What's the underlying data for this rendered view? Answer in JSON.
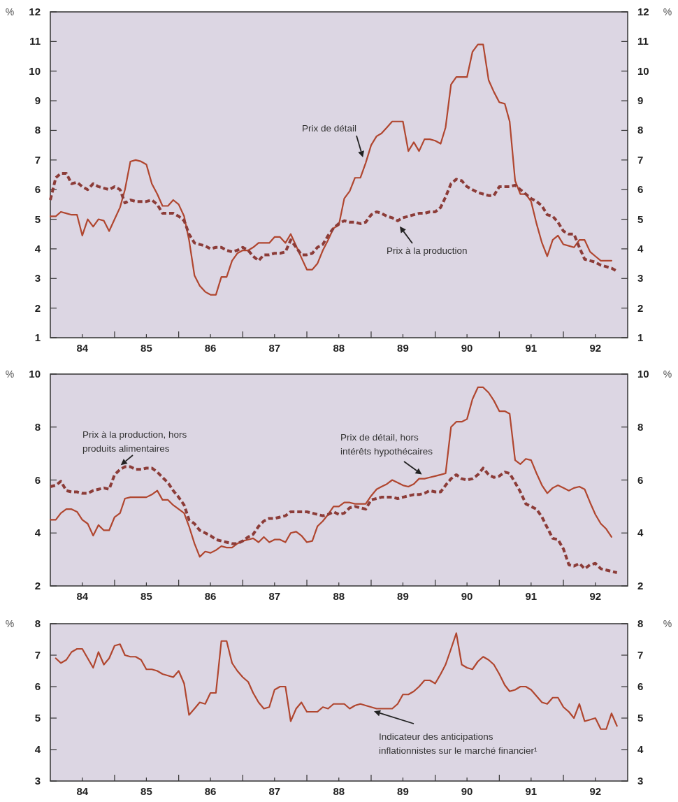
{
  "chart_data": [
    {
      "type": "line",
      "ylabel": "%",
      "y2label": "%",
      "x": [
        "1984-01",
        "1984-02",
        "1984-03",
        "1984-04",
        "1984-05",
        "1984-06",
        "1984-07",
        "1984-08",
        "1984-09",
        "1984-10",
        "1984-11",
        "1984-12",
        "1985-01",
        "1985-02",
        "1985-03",
        "1985-04",
        "1985-05",
        "1985-06",
        "1985-07",
        "1985-08",
        "1985-09",
        "1985-10",
        "1985-11",
        "1985-12",
        "1986-01",
        "1986-02",
        "1986-03",
        "1986-04",
        "1986-05",
        "1986-06",
        "1986-07",
        "1986-08",
        "1986-09",
        "1986-10",
        "1986-11",
        "1986-12",
        "1987-01",
        "1987-02",
        "1987-03",
        "1987-04",
        "1987-05",
        "1987-06",
        "1987-07",
        "1987-08",
        "1987-09",
        "1987-10",
        "1987-11",
        "1987-12",
        "1988-01",
        "1988-02",
        "1988-03",
        "1988-04",
        "1988-05",
        "1988-06",
        "1988-07",
        "1988-08",
        "1988-09",
        "1988-10",
        "1988-11",
        "1988-12",
        "1989-01",
        "1989-02",
        "1989-03",
        "1989-04",
        "1989-05",
        "1989-06",
        "1989-07",
        "1989-08",
        "1989-09",
        "1989-10",
        "1989-11",
        "1989-12",
        "1990-01",
        "1990-02",
        "1990-03",
        "1990-04",
        "1990-05",
        "1990-06",
        "1990-07",
        "1990-08",
        "1990-09",
        "1990-10",
        "1990-11",
        "1990-12",
        "1991-01",
        "1991-02",
        "1991-03",
        "1991-04",
        "1991-05",
        "1991-06",
        "1991-07",
        "1991-08",
        "1991-09",
        "1991-10",
        "1991-11",
        "1991-12",
        "1992-01",
        "1992-02",
        "1992-03",
        "1992-04",
        "1992-05",
        "1992-06",
        "1992-07",
        "1992-08",
        "1992-09",
        "1992-10",
        "1992-11"
      ],
      "xlim": [
        "1984-01",
        "1993-01"
      ],
      "xticks": [
        {
          "value": "1984-07",
          "label": "84"
        },
        {
          "value": "1985-01",
          "label": null
        },
        {
          "value": "1985-07",
          "label": "85"
        },
        {
          "value": "1986-01",
          "label": null
        },
        {
          "value": "1986-07",
          "label": "86"
        },
        {
          "value": "1987-01",
          "label": null
        },
        {
          "value": "1987-07",
          "label": "87"
        },
        {
          "value": "1988-01",
          "label": null
        },
        {
          "value": "1988-07",
          "label": "88"
        },
        {
          "value": "1989-01",
          "label": null
        },
        {
          "value": "1989-07",
          "label": "89"
        },
        {
          "value": "1990-01",
          "label": null
        },
        {
          "value": "1990-07",
          "label": "90"
        },
        {
          "value": "1991-01",
          "label": null
        },
        {
          "value": "1991-07",
          "label": "91"
        },
        {
          "value": "1992-01",
          "label": null
        },
        {
          "value": "1992-07",
          "label": "92"
        }
      ],
      "ylim": [
        1,
        12
      ],
      "yticks": [
        1,
        2,
        3,
        4,
        5,
        6,
        7,
        8,
        9,
        10,
        11,
        12
      ],
      "y2lim": [
        1,
        12
      ],
      "y2ticks": [
        1,
        2,
        3,
        4,
        5,
        6,
        7,
        8,
        9,
        10,
        11,
        12
      ],
      "series": [
        {
          "name": "Prix de détail",
          "color": "#b0462f",
          "line_style": "solid",
          "values": [
            5.1,
            5.1,
            5.25,
            5.2,
            5.15,
            5.15,
            4.45,
            5.0,
            4.75,
            5.0,
            4.95,
            4.6,
            5.0,
            5.4,
            6.0,
            6.95,
            7.0,
            6.95,
            6.85,
            6.2,
            5.85,
            5.45,
            5.45,
            5.65,
            5.5,
            5.1,
            4.3,
            3.1,
            2.75,
            2.55,
            2.45,
            2.45,
            3.05,
            3.05,
            3.6,
            3.85,
            3.95,
            3.95,
            4.05,
            4.2,
            4.2,
            4.2,
            4.4,
            4.4,
            4.2,
            4.5,
            4.1,
            3.7,
            3.3,
            3.3,
            3.5,
            3.95,
            4.3,
            4.7,
            4.8,
            5.7,
            5.95,
            6.4,
            6.4,
            6.9,
            7.5,
            7.8,
            7.9,
            8.1,
            8.3,
            8.3,
            8.3,
            7.3,
            7.6,
            7.3,
            7.7,
            7.7,
            7.65,
            7.55,
            8.1,
            9.55,
            9.8,
            9.8,
            9.8,
            10.65,
            10.9,
            10.9,
            9.7,
            9.3,
            8.95,
            8.9,
            8.3,
            6.3,
            5.85,
            5.85,
            5.6,
            4.85,
            4.2,
            3.75,
            4.3,
            4.45,
            4.15,
            4.1,
            4.05,
            4.3,
            4.3,
            3.9,
            3.75,
            3.6,
            3.6,
            3.6,
            null
          ]
        },
        {
          "name": "Prix à la production",
          "color": "#8c3c38",
          "line_style": "dashed",
          "values": [
            5.65,
            6.4,
            6.55,
            6.55,
            6.2,
            6.25,
            6.1,
            6.0,
            6.2,
            6.1,
            6.05,
            6.0,
            6.1,
            6.0,
            5.55,
            5.65,
            5.6,
            5.6,
            5.6,
            5.65,
            5.5,
            5.2,
            5.2,
            5.2,
            5.1,
            4.95,
            4.5,
            4.2,
            4.15,
            4.1,
            4.0,
            4.05,
            4.05,
            3.95,
            3.9,
            3.95,
            4.05,
            3.95,
            3.75,
            3.6,
            3.8,
            3.8,
            3.85,
            3.85,
            3.9,
            4.3,
            4.05,
            3.8,
            3.8,
            3.85,
            4.05,
            4.15,
            4.45,
            4.7,
            4.85,
            4.95,
            4.9,
            4.9,
            4.85,
            4.9,
            5.15,
            5.25,
            5.2,
            5.1,
            5.05,
            4.95,
            5.05,
            5.1,
            5.15,
            5.2,
            5.2,
            5.25,
            5.25,
            5.4,
            5.75,
            6.2,
            6.35,
            6.3,
            6.1,
            6.0,
            5.9,
            5.85,
            5.8,
            5.8,
            6.1,
            6.1,
            6.1,
            6.15,
            6.0,
            5.85,
            5.7,
            5.6,
            5.45,
            5.15,
            5.1,
            4.9,
            4.6,
            4.5,
            4.5,
            4.05,
            3.65,
            3.6,
            3.55,
            3.45,
            3.4,
            3.35,
            3.25
          ]
        }
      ]
    },
    {
      "type": "line",
      "ylabel": "%",
      "y2label": "%",
      "x": [
        "1984-01",
        "1984-02",
        "1984-03",
        "1984-04",
        "1984-05",
        "1984-06",
        "1984-07",
        "1984-08",
        "1984-09",
        "1984-10",
        "1984-11",
        "1984-12",
        "1985-01",
        "1985-02",
        "1985-03",
        "1985-04",
        "1985-05",
        "1985-06",
        "1985-07",
        "1985-08",
        "1985-09",
        "1985-10",
        "1985-11",
        "1985-12",
        "1986-01",
        "1986-02",
        "1986-03",
        "1986-04",
        "1986-05",
        "1986-06",
        "1986-07",
        "1986-08",
        "1986-09",
        "1986-10",
        "1986-11",
        "1986-12",
        "1987-01",
        "1987-02",
        "1987-03",
        "1987-04",
        "1987-05",
        "1987-06",
        "1987-07",
        "1987-08",
        "1987-09",
        "1987-10",
        "1987-11",
        "1987-12",
        "1988-01",
        "1988-02",
        "1988-03",
        "1988-04",
        "1988-05",
        "1988-06",
        "1988-07",
        "1988-08",
        "1988-09",
        "1988-10",
        "1988-11",
        "1988-12",
        "1989-01",
        "1989-02",
        "1989-03",
        "1989-04",
        "1989-05",
        "1989-06",
        "1989-07",
        "1989-08",
        "1989-09",
        "1989-10",
        "1989-11",
        "1989-12",
        "1990-01",
        "1990-02",
        "1990-03",
        "1990-04",
        "1990-05",
        "1990-06",
        "1990-07",
        "1990-08",
        "1990-09",
        "1990-10",
        "1990-11",
        "1990-12",
        "1991-01",
        "1991-02",
        "1991-03",
        "1991-04",
        "1991-05",
        "1991-06",
        "1991-07",
        "1991-08",
        "1991-09",
        "1991-10",
        "1991-11",
        "1991-12",
        "1992-01",
        "1992-02",
        "1992-03",
        "1992-04",
        "1992-05",
        "1992-06",
        "1992-07",
        "1992-08",
        "1992-09",
        "1992-10",
        "1992-11"
      ],
      "xlim": [
        "1984-01",
        "1993-01"
      ],
      "xticks": [
        {
          "value": "1984-07",
          "label": "84"
        },
        {
          "value": "1985-01",
          "label": null
        },
        {
          "value": "1985-07",
          "label": "85"
        },
        {
          "value": "1986-01",
          "label": null
        },
        {
          "value": "1986-07",
          "label": "86"
        },
        {
          "value": "1987-01",
          "label": null
        },
        {
          "value": "1987-07",
          "label": "87"
        },
        {
          "value": "1988-01",
          "label": null
        },
        {
          "value": "1988-07",
          "label": "88"
        },
        {
          "value": "1989-01",
          "label": null
        },
        {
          "value": "1989-07",
          "label": "89"
        },
        {
          "value": "1990-01",
          "label": null
        },
        {
          "value": "1990-07",
          "label": "90"
        },
        {
          "value": "1991-01",
          "label": null
        },
        {
          "value": "1991-07",
          "label": "91"
        },
        {
          "value": "1992-01",
          "label": null
        },
        {
          "value": "1992-07",
          "label": "92"
        }
      ],
      "ylim": [
        2,
        10
      ],
      "yticks": [
        2,
        4,
        6,
        8,
        10
      ],
      "y2lim": [
        2,
        10
      ],
      "y2ticks": [
        2,
        4,
        6,
        8,
        10
      ],
      "series": [
        {
          "name": "Prix de détail, hors intérêts hypothécaires",
          "color": "#b0462f",
          "line_style": "solid",
          "values": [
            4.5,
            4.5,
            4.75,
            4.9,
            4.9,
            4.8,
            4.5,
            4.35,
            3.9,
            4.3,
            4.1,
            4.1,
            4.6,
            4.75,
            5.3,
            5.35,
            5.35,
            5.35,
            5.35,
            5.45,
            5.6,
            5.25,
            5.25,
            5.05,
            4.9,
            4.75,
            4.25,
            3.6,
            3.1,
            3.3,
            3.25,
            3.35,
            3.5,
            3.45,
            3.45,
            3.6,
            3.7,
            3.75,
            3.8,
            3.65,
            3.85,
            3.65,
            3.75,
            3.75,
            3.65,
            4.0,
            4.05,
            3.9,
            3.65,
            3.7,
            4.25,
            4.45,
            4.7,
            5.0,
            5.0,
            5.15,
            5.15,
            5.1,
            5.1,
            5.1,
            5.4,
            5.65,
            5.75,
            5.85,
            6.0,
            5.9,
            5.8,
            5.75,
            5.85,
            6.05,
            6.05,
            6.1,
            6.15,
            6.2,
            6.25,
            8.0,
            8.2,
            8.2,
            8.3,
            9.05,
            9.5,
            9.5,
            9.3,
            9.0,
            8.6,
            8.6,
            8.5,
            6.75,
            6.6,
            6.8,
            6.75,
            6.25,
            5.8,
            5.5,
            5.7,
            5.8,
            5.7,
            5.6,
            5.7,
            5.75,
            5.65,
            5.15,
            4.7,
            4.35,
            4.15,
            3.85,
            null
          ]
        },
        {
          "name": "Prix à la production, hors produits alimentaires",
          "color": "#8c3c38",
          "line_style": "dashed",
          "values": [
            5.75,
            5.8,
            5.95,
            5.6,
            5.55,
            5.55,
            5.5,
            5.5,
            5.6,
            5.65,
            5.7,
            5.65,
            6.2,
            6.4,
            6.5,
            6.5,
            6.4,
            6.4,
            6.45,
            6.45,
            6.3,
            6.1,
            5.9,
            5.6,
            5.35,
            5.05,
            4.5,
            4.35,
            4.1,
            4.0,
            3.9,
            3.75,
            3.7,
            3.65,
            3.6,
            3.6,
            3.7,
            3.85,
            3.95,
            4.25,
            4.45,
            4.55,
            4.55,
            4.6,
            4.65,
            4.8,
            4.8,
            4.8,
            4.8,
            4.75,
            4.7,
            4.65,
            4.7,
            4.8,
            4.7,
            4.75,
            4.95,
            5.0,
            4.95,
            4.9,
            5.25,
            5.3,
            5.35,
            5.35,
            5.35,
            5.3,
            5.35,
            5.4,
            5.45,
            5.45,
            5.5,
            5.6,
            5.55,
            5.55,
            5.8,
            6.05,
            6.2,
            6.05,
            6.0,
            6.05,
            6.2,
            6.45,
            6.2,
            6.1,
            6.15,
            6.3,
            6.25,
            5.9,
            5.55,
            5.1,
            5.0,
            4.9,
            4.6,
            4.2,
            3.8,
            3.75,
            3.4,
            2.8,
            2.75,
            2.85,
            2.65,
            2.8,
            2.85,
            2.65,
            2.6,
            2.55,
            2.5
          ]
        }
      ]
    },
    {
      "type": "line",
      "ylabel": "%",
      "y2label": "%",
      "x": [
        "1984-02",
        "1984-03",
        "1984-04",
        "1984-05",
        "1984-06",
        "1984-07",
        "1984-08",
        "1984-09",
        "1984-10",
        "1984-11",
        "1984-12",
        "1985-01",
        "1985-02",
        "1985-03",
        "1985-04",
        "1985-05",
        "1985-06",
        "1985-07",
        "1985-08",
        "1985-09",
        "1985-10",
        "1985-11",
        "1985-12",
        "1986-01",
        "1986-02",
        "1986-03",
        "1986-04",
        "1986-05",
        "1986-06",
        "1986-07",
        "1986-08",
        "1986-09",
        "1986-10",
        "1986-11",
        "1986-12",
        "1987-01",
        "1987-02",
        "1987-03",
        "1987-04",
        "1987-05",
        "1987-06",
        "1987-07",
        "1987-08",
        "1987-09",
        "1987-10",
        "1987-11",
        "1987-12",
        "1988-01",
        "1988-02",
        "1988-03",
        "1988-04",
        "1988-05",
        "1988-06",
        "1988-07",
        "1988-08",
        "1988-09",
        "1988-10",
        "1988-11",
        "1988-12",
        "1989-01",
        "1989-02",
        "1989-03",
        "1989-04",
        "1989-05",
        "1989-06",
        "1989-07",
        "1989-08",
        "1989-09",
        "1989-10",
        "1989-11",
        "1989-12",
        "1990-01",
        "1990-02",
        "1990-03",
        "1990-04",
        "1990-05",
        "1990-06",
        "1990-07",
        "1990-08",
        "1990-09",
        "1990-10",
        "1990-11",
        "1990-12",
        "1991-01",
        "1991-02",
        "1991-03",
        "1991-04",
        "1991-05",
        "1991-06",
        "1991-07",
        "1991-08",
        "1991-09",
        "1991-10",
        "1991-11",
        "1991-12",
        "1992-01",
        "1992-02",
        "1992-03",
        "1992-04",
        "1992-05",
        "1992-06",
        "1992-07",
        "1992-08",
        "1992-09",
        "1992-10",
        "1992-11"
      ],
      "xlim": [
        "1984-01",
        "1993-01"
      ],
      "xticks": [
        {
          "value": "1984-07",
          "label": "84"
        },
        {
          "value": "1985-01",
          "label": null
        },
        {
          "value": "1985-07",
          "label": "85"
        },
        {
          "value": "1986-01",
          "label": null
        },
        {
          "value": "1986-07",
          "label": "86"
        },
        {
          "value": "1987-01",
          "label": null
        },
        {
          "value": "1987-07",
          "label": "87"
        },
        {
          "value": "1988-01",
          "label": null
        },
        {
          "value": "1988-07",
          "label": "88"
        },
        {
          "value": "1989-01",
          "label": null
        },
        {
          "value": "1989-07",
          "label": "89"
        },
        {
          "value": "1990-01",
          "label": null
        },
        {
          "value": "1990-07",
          "label": "90"
        },
        {
          "value": "1991-01",
          "label": null
        },
        {
          "value": "1991-07",
          "label": "91"
        },
        {
          "value": "1992-01",
          "label": null
        },
        {
          "value": "1992-07",
          "label": "92"
        }
      ],
      "ylim": [
        3,
        8
      ],
      "yticks": [
        3,
        4,
        5,
        6,
        7,
        8
      ],
      "y2lim": [
        3,
        8
      ],
      "y2ticks": [
        3,
        4,
        5,
        6,
        7,
        8
      ],
      "series": [
        {
          "name": "Indicateur des anticipations inflationnistes sur le marché financier¹",
          "color": "#b0462f",
          "line_style": "solid",
          "values": [
            6.9,
            6.75,
            6.85,
            7.1,
            7.2,
            7.2,
            6.9,
            6.6,
            7.1,
            6.7,
            6.9,
            7.3,
            7.35,
            7.0,
            6.95,
            6.95,
            6.85,
            6.55,
            6.55,
            6.5,
            6.4,
            6.35,
            6.3,
            6.5,
            6.1,
            5.1,
            5.3,
            5.5,
            5.45,
            5.8,
            5.8,
            7.45,
            7.45,
            6.75,
            6.5,
            6.3,
            6.15,
            5.8,
            5.5,
            5.3,
            5.35,
            5.9,
            6.0,
            6.0,
            4.9,
            5.3,
            5.5,
            5.2,
            5.2,
            5.2,
            5.35,
            5.3,
            5.45,
            5.45,
            5.45,
            5.3,
            5.4,
            5.45,
            5.4,
            5.35,
            5.3,
            5.3,
            5.3,
            5.3,
            5.45,
            5.75,
            5.75,
            5.85,
            6.0,
            6.2,
            6.2,
            6.1,
            6.4,
            6.7,
            7.2,
            7.7,
            6.7,
            6.6,
            6.55,
            6.8,
            6.95,
            6.85,
            6.7,
            6.4,
            6.05,
            5.85,
            5.9,
            6.0,
            6.0,
            5.9,
            5.7,
            5.5,
            5.45,
            5.65,
            5.65,
            5.35,
            5.2,
            5.0,
            5.45,
            4.9,
            4.95,
            5.0,
            4.65,
            4.65,
            5.15,
            4.75
          ]
        }
      ]
    }
  ]
}
